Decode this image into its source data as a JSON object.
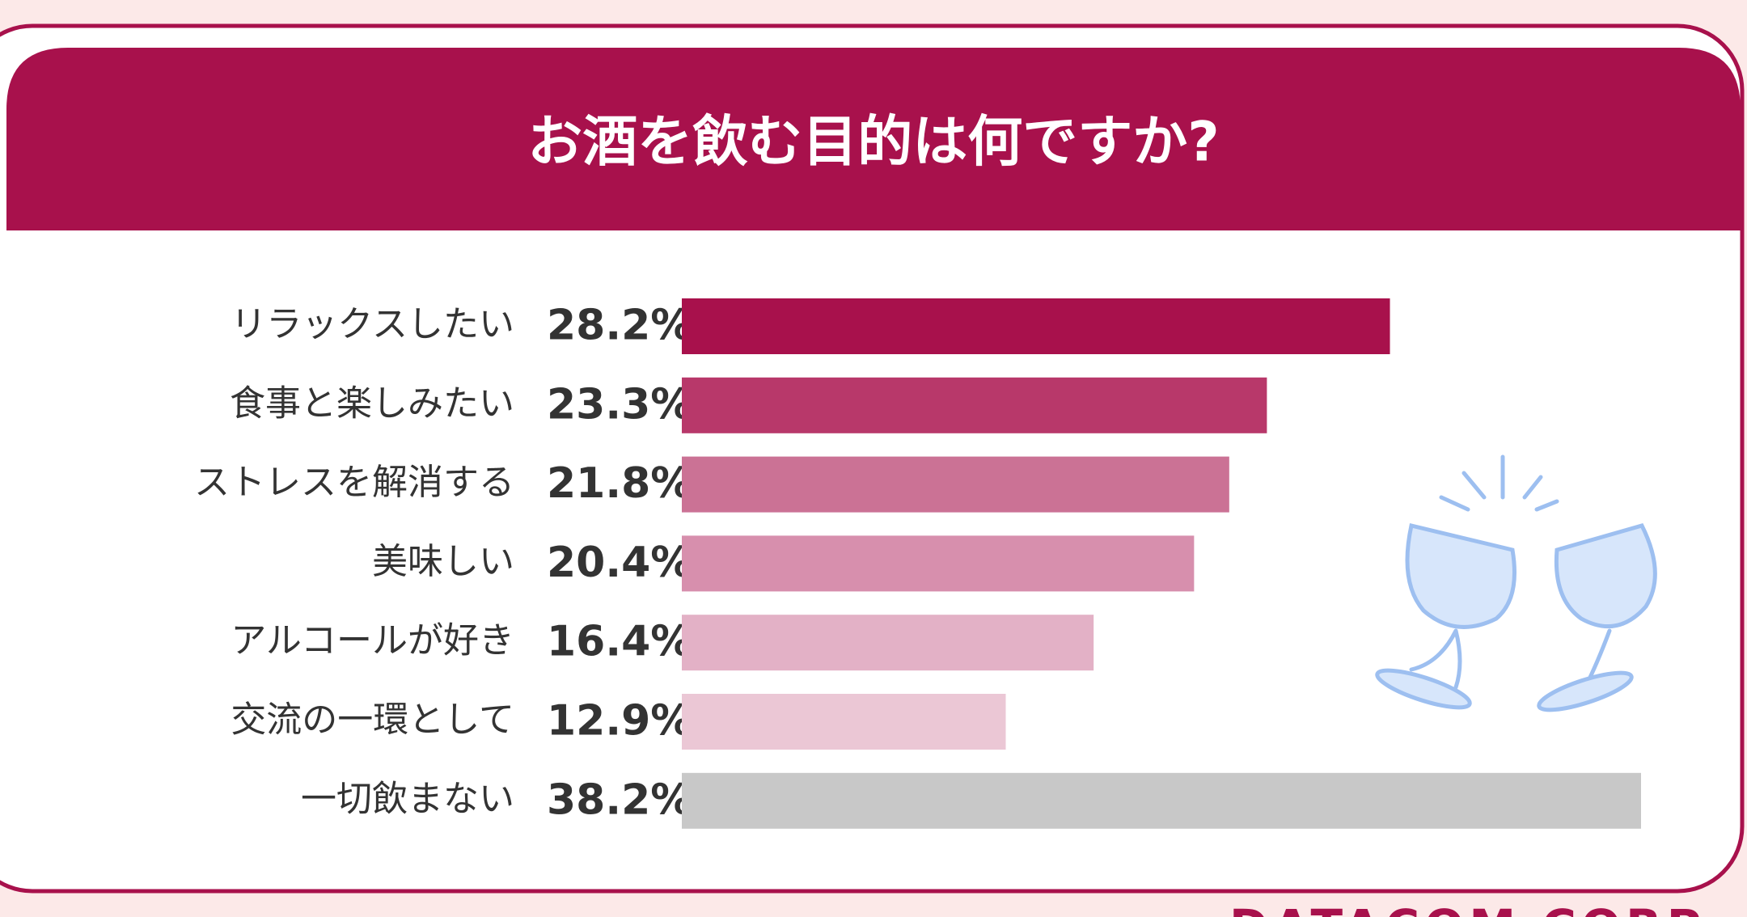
{
  "chart_data": {
    "type": "bar",
    "orientation": "horizontal",
    "title": "お酒を飲む目的は何ですか?",
    "categories": [
      "リラックスしたい",
      "食事と楽しみたい",
      "ストレスを解消する",
      "美味しい",
      "アルコールが好き",
      "交流の一環として",
      "一切飲まない"
    ],
    "values": [
      28.2,
      23.3,
      21.8,
      20.4,
      16.4,
      12.9,
      38.2
    ],
    "value_labels": [
      "28.2%",
      "23.3%",
      "21.8%",
      "20.4%",
      "16.4%",
      "12.9%",
      "38.2%"
    ],
    "colors": [
      "#a8114c",
      "#b8386a",
      "#cb7295",
      "#d78fad",
      "#e3b1c6",
      "#ebc7d5",
      "#c8c8c8"
    ],
    "source": "DATACOM CORP"
  }
}
